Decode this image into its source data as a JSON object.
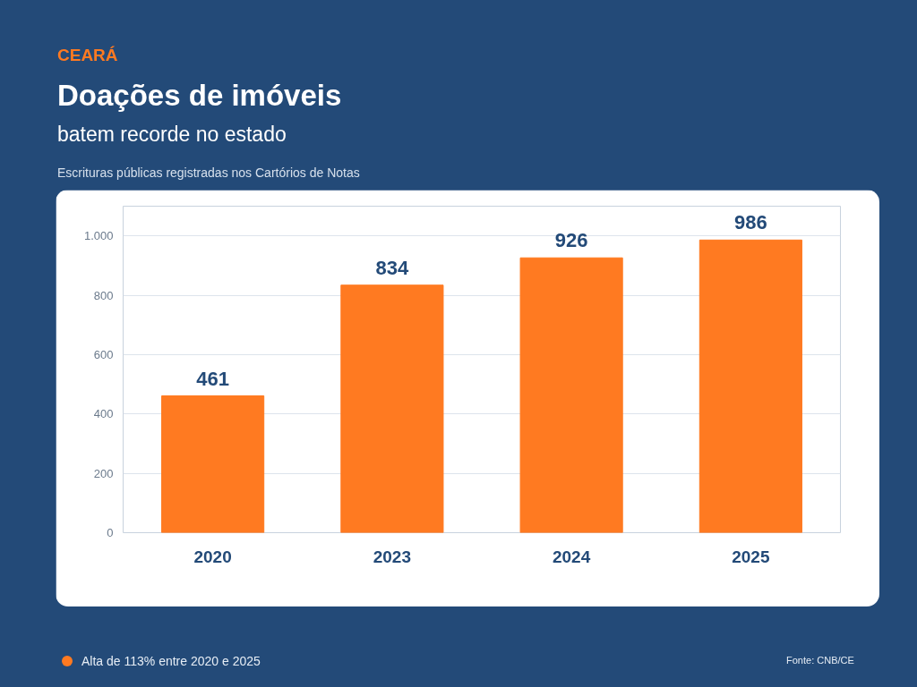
{
  "chart_data": {
    "type": "bar",
    "title": "Doações de imóveis",
    "subtitle": "batem recorde no estado",
    "annotations": [
      "CEARÁ",
      "Escrituras públicas registradas nos Cartórios de Notas",
      "Alta de 113% entre 2020 e 2025",
      "Fonte: CNB/CE"
    ],
    "categories": [
      "2020",
      "2023",
      "2024",
      "2025"
    ],
    "series": [
      {
        "color": "#ff7a21",
        "values": [
          461,
          834,
          926,
          986
        ]
      }
    ],
    "ylim": [
      0,
      1100
    ],
    "yticks": [
      0,
      200,
      400,
      600,
      800,
      {
        "value": 1000,
        "label": "1.000"
      }
    ],
    "grid": "y",
    "data_labels": true
  }
}
